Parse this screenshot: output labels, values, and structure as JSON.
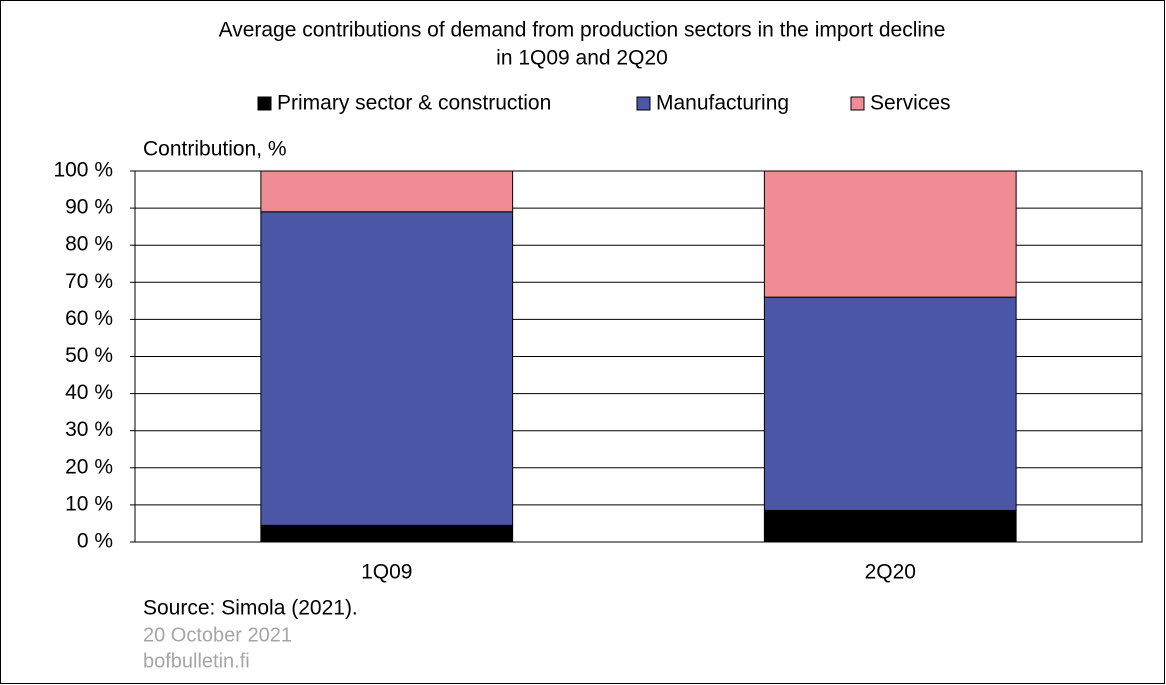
{
  "chart_data": {
    "type": "stacked_bar",
    "title": [
      "Average contributions of demand from production sectors in the import decline",
      "in 1Q09 and 2Q20"
    ],
    "y_label": "Contribution, %",
    "categories": [
      "1Q09",
      "2Q20"
    ],
    "series": [
      {
        "name": "Primary sector & construction",
        "color": "#000000",
        "values": [
          4.5,
          8.5
        ]
      },
      {
        "name": "Manufacturing",
        "color": "#4c56a6",
        "values": [
          84.5,
          57.5
        ]
      },
      {
        "name": "Services",
        "color": "#f08c94",
        "values": [
          11,
          34
        ]
      }
    ],
    "ylim": [
      0,
      100
    ],
    "yticks": [
      {
        "value": 0,
        "label": "0 %"
      },
      {
        "value": 10,
        "label": "10 %"
      },
      {
        "value": 20,
        "label": "20 %"
      },
      {
        "value": 30,
        "label": "30 %"
      },
      {
        "value": 40,
        "label": "40 %"
      },
      {
        "value": 50,
        "label": "50 %"
      },
      {
        "value": 60,
        "label": "60 %"
      },
      {
        "value": 70,
        "label": "70 %"
      },
      {
        "value": 80,
        "label": "80 %"
      },
      {
        "value": 90,
        "label": "90 %"
      },
      {
        "value": 100,
        "label": "100 %"
      }
    ],
    "grid": true,
    "legend": "top",
    "source": "Source: Simola (2021).",
    "date": "20 October 2021",
    "site": "bofbulletin.fi"
  }
}
